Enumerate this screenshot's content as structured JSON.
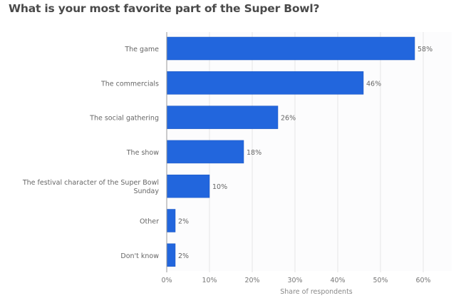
{
  "chart_data": {
    "type": "bar",
    "orientation": "horizontal",
    "title": "What is your most favorite part of the Super Bowl?",
    "categories": [
      [
        "The game"
      ],
      [
        "The commercials"
      ],
      [
        "The social gathering"
      ],
      [
        "The show"
      ],
      [
        "The festival character of the Super Bowl",
        "Sunday"
      ],
      [
        "Other"
      ],
      [
        "Don't know"
      ]
    ],
    "category_names": [
      "The game",
      "The commercials",
      "The social gathering",
      "The show",
      "The festival character of the Super Bowl Sunday",
      "Other",
      "Don't know"
    ],
    "values": [
      58,
      46,
      26,
      18,
      10,
      2,
      2
    ],
    "value_labels": [
      "58%",
      "46%",
      "26%",
      "18%",
      "10%",
      "2%",
      "2%"
    ],
    "xlabel": "Share of respondents",
    "ylabel": "",
    "xlim": [
      0,
      60
    ],
    "xticks": [
      0,
      10,
      20,
      30,
      40,
      50,
      60
    ],
    "xtick_labels": [
      "0%",
      "10%",
      "20%",
      "30%",
      "40%",
      "50%",
      "60%"
    ],
    "grid": true,
    "legend": "none",
    "bar_color": "#2266dd"
  }
}
